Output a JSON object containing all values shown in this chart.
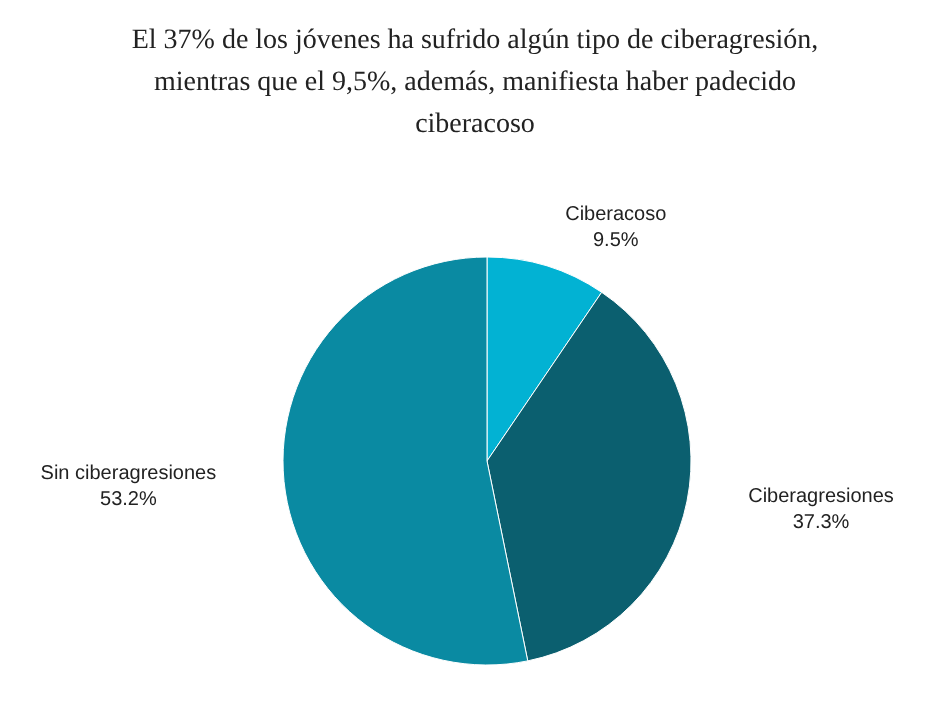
{
  "chart_data": {
    "type": "pie",
    "title": "El 37% de los jóvenes ha sufrido algún tipo de ciberagresión, mientras que el 9,5%, además, manifiesta haber padecido ciberacoso",
    "categories": [
      "Ciberacoso",
      "Ciberagresiones",
      "Sin ciberagresiones"
    ],
    "values": [
      9.5,
      37.3,
      53.2
    ],
    "colors": [
      "#02b2d3",
      "#0b5f6f",
      "#0a8aa2"
    ],
    "value_labels": [
      "9.5%",
      "37.3%",
      "53.2%"
    ],
    "legend": false
  }
}
